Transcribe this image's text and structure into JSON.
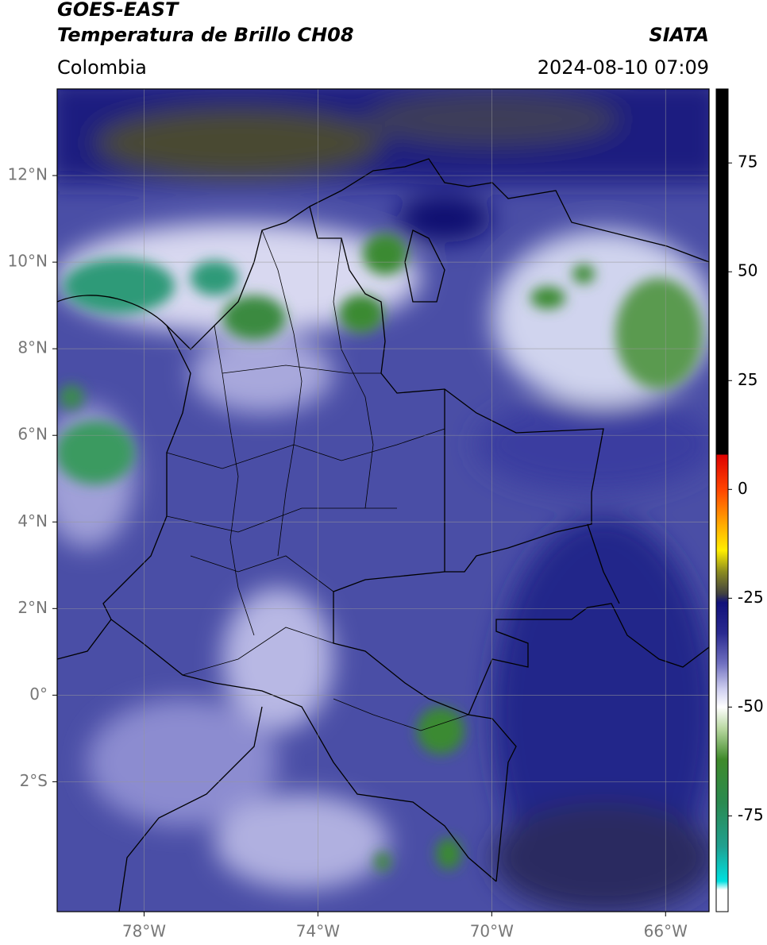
{
  "header": {
    "title": "GOES-EAST",
    "subtitle": "Temperatura de Brillo CH08",
    "source": "SIATA",
    "region": "Colombia",
    "datetime": "2024-08-10 07:09"
  },
  "map": {
    "lon_lim": [
      -80,
      -65
    ],
    "lat_lim": [
      -5,
      14
    ],
    "lon_ticks": [
      {
        "value": -78,
        "label": "78°W"
      },
      {
        "value": -74,
        "label": "74°W"
      },
      {
        "value": -70,
        "label": "70°W"
      },
      {
        "value": -66,
        "label": "66°W"
      }
    ],
    "lat_ticks": [
      {
        "value": 12,
        "label": "12°N"
      },
      {
        "value": 10,
        "label": "10°N"
      },
      {
        "value": 8,
        "label": "8°N"
      },
      {
        "value": 6,
        "label": "6°N"
      },
      {
        "value": 4,
        "label": "4°N"
      },
      {
        "value": 2,
        "label": "2°N"
      },
      {
        "value": 0,
        "label": "0°"
      },
      {
        "value": -2,
        "label": "2°S"
      }
    ],
    "grid": true
  },
  "colorbar": {
    "lim": [
      -97,
      92
    ],
    "ticks": [
      75,
      50,
      25,
      0,
      -25,
      -50,
      -75
    ],
    "stops": [
      {
        "value": 92,
        "color": "#000000"
      },
      {
        "value": 8,
        "color": "#000000"
      },
      {
        "value": 8,
        "color": "#dd0000"
      },
      {
        "value": 0,
        "color": "#ff4400"
      },
      {
        "value": -8,
        "color": "#ffaa00"
      },
      {
        "value": -14,
        "color": "#ffee00"
      },
      {
        "value": -19,
        "color": "#8a8a20"
      },
      {
        "value": -24,
        "color": "#404040"
      },
      {
        "value": -26,
        "color": "#10107a"
      },
      {
        "value": -33,
        "color": "#2a2a90"
      },
      {
        "value": -40,
        "color": "#7070c0"
      },
      {
        "value": -46,
        "color": "#d0d0f0"
      },
      {
        "value": -50,
        "color": "#ffffff"
      },
      {
        "value": -55,
        "color": "#b8d8a0"
      },
      {
        "value": -62,
        "color": "#3f8a2a"
      },
      {
        "value": -72,
        "color": "#2a8a50"
      },
      {
        "value": -82,
        "color": "#20a090"
      },
      {
        "value": -90,
        "color": "#00e0e0"
      },
      {
        "value": -92,
        "color": "#ffffff"
      },
      {
        "value": -97,
        "color": "#ffffff"
      }
    ]
  }
}
